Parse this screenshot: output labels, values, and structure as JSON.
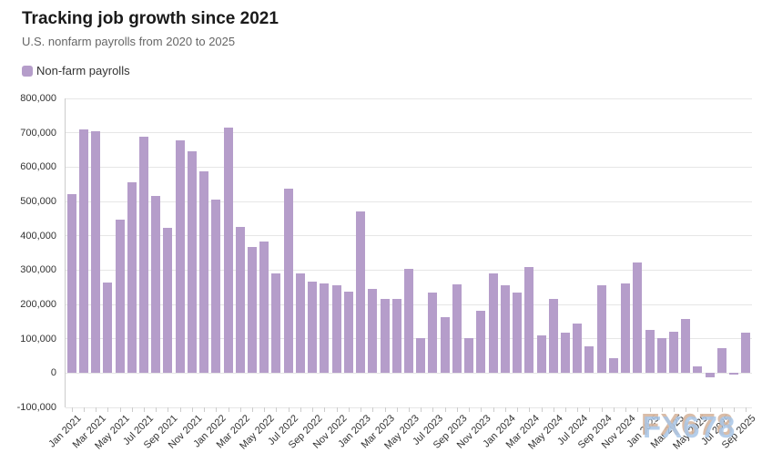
{
  "header": {
    "title": "Tracking job growth since 2021",
    "subtitle": "U.S. nonfarm payrolls from 2020 to 2025"
  },
  "legend": {
    "label": "Non-farm payrolls",
    "color": "#b59dca"
  },
  "watermark": "FX678",
  "colors": {
    "bar": "#b59dca",
    "grid": "#e6e6e6",
    "axis": "#cccccc",
    "tick_text": "#333333",
    "subtitle_text": "#666666"
  },
  "chart_data": {
    "type": "bar",
    "title": "Tracking job growth since 2021",
    "subtitle": "U.S. nonfarm payrolls from 2020 to 2025",
    "series_name": "Non-farm payrolls",
    "categories": [
      "Jan 2021",
      "Feb 2021",
      "Mar 2021",
      "Apr 2021",
      "May 2021",
      "Jun 2021",
      "Jul 2021",
      "Aug 2021",
      "Sep 2021",
      "Oct 2021",
      "Nov 2021",
      "Dec 2021",
      "Jan 2022",
      "Feb 2022",
      "Mar 2022",
      "Apr 2022",
      "May 2022",
      "Jun 2022",
      "Jul 2022",
      "Aug 2022",
      "Sep 2022",
      "Oct 2022",
      "Nov 2022",
      "Dec 2022",
      "Jan 2023",
      "Feb 2023",
      "Mar 2023",
      "Apr 2023",
      "May 2023",
      "Jun 2023",
      "Jul 2023",
      "Aug 2023",
      "Sep 2023",
      "Oct 2023",
      "Nov 2023",
      "Dec 2023",
      "Jan 2024",
      "Feb 2024",
      "Mar 2024",
      "Apr 2024",
      "May 2024",
      "Jun 2024",
      "Jul 2024",
      "Aug 2024",
      "Sep 2024",
      "Oct 2024",
      "Nov 2024",
      "Dec 2024",
      "Jan 2025",
      "Feb 2025",
      "Mar 2025",
      "Apr 2025",
      "May 2025",
      "Jun 2025",
      "Jul 2025",
      "Aug 2025",
      "Sep 2025"
    ],
    "values": [
      520000,
      710000,
      704000,
      263000,
      447000,
      557000,
      689000,
      517000,
      424000,
      677000,
      647000,
      588000,
      504000,
      714000,
      426000,
      367000,
      383000,
      291000,
      537000,
      289000,
      267000,
      260000,
      257000,
      236000,
      470000,
      246000,
      215000,
      215000,
      304000,
      103000,
      234000,
      162000,
      258000,
      103000,
      182000,
      290000,
      255000,
      235000,
      310000,
      109000,
      215000,
      118000,
      144000,
      78000,
      255000,
      44000,
      261000,
      323000,
      125000,
      102000,
      120000,
      157000,
      19000,
      -13000,
      72000,
      -4000,
      119000
    ],
    "xlabel": "",
    "ylabel": "",
    "ylim": [
      -100000,
      800000
    ],
    "y_ticks": [
      800000,
      700000,
      600000,
      500000,
      400000,
      300000,
      200000,
      100000,
      0,
      -100000
    ],
    "y_tick_labels": [
      "800,000",
      "700,000",
      "600,000",
      "500,000",
      "400,000",
      "300,000",
      "200,000",
      "100,000",
      "0",
      "-100,000"
    ],
    "x_tick_label_every": 2,
    "grid": true,
    "legend_position": "top-left",
    "bar_color": "#b59dca"
  }
}
